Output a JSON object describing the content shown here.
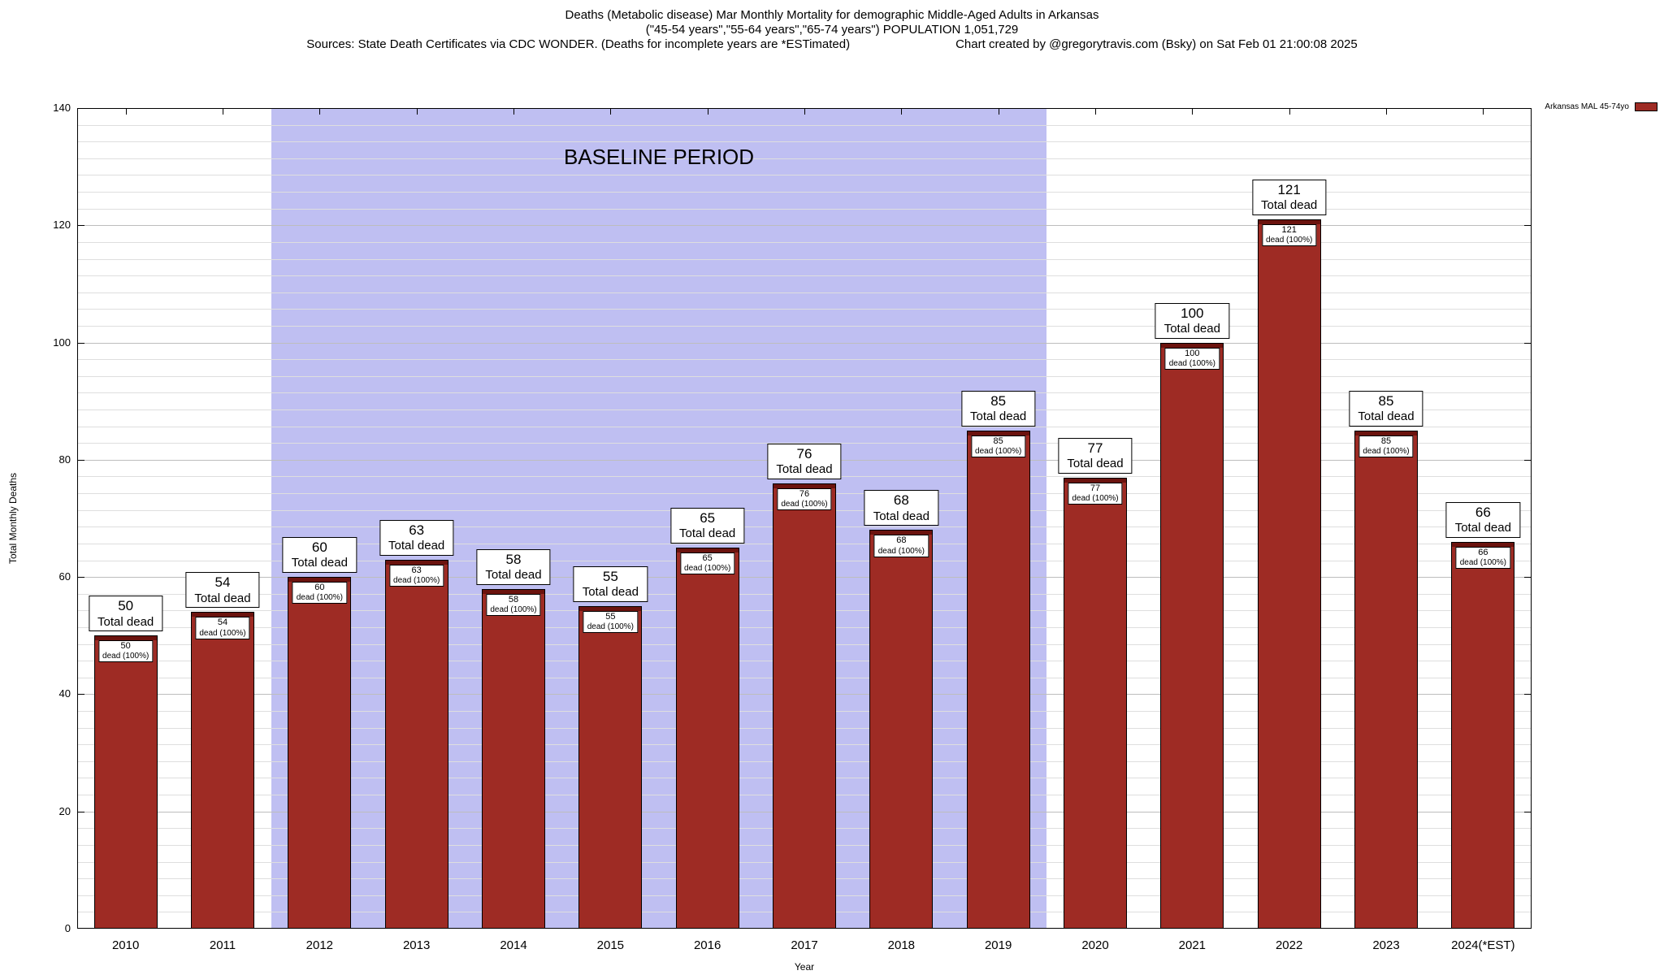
{
  "header": {
    "title_line1": "Deaths (Metabolic disease) Mar Monthly Mortality for demographic Middle-Aged Adults in Arkansas",
    "title_line2": "(\"45-54 years\",\"55-64 years\",\"65-74 years\") POPULATION 1,051,729",
    "sources": "Sources: State Death Certificates via CDC WONDER. (Deaths for incomplete years are *ESTimated)",
    "credit": "Chart created by @gregorytravis.com (Bsky) on Sat Feb 01 21:00:08 2025"
  },
  "legend": {
    "label": "Arkansas MAL 45-74yo",
    "swatch_color": "#9e2b24"
  },
  "axes": {
    "y_label": "Total Monthly Deaths",
    "x_label": "Year",
    "y_ticks": [
      0,
      20,
      40,
      60,
      80,
      100,
      120,
      140
    ]
  },
  "chart_data": {
    "type": "bar",
    "title": "Deaths (Metabolic disease) Mar Monthly Mortality for demographic Middle-Aged Adults in Arkansas",
    "xlabel": "Year",
    "ylabel": "Total Monthly Deaths",
    "ylim": [
      0,
      140
    ],
    "grid": true,
    "legend_position": "top-right",
    "categories": [
      "2010",
      "2011",
      "2012",
      "2013",
      "2014",
      "2015",
      "2016",
      "2017",
      "2018",
      "2019",
      "2020",
      "2021",
      "2022",
      "2023",
      "2024(*EST)"
    ],
    "series": [
      {
        "name": "Arkansas MAL 45-74yo",
        "values": [
          50,
          54,
          60,
          63,
          58,
          55,
          65,
          76,
          68,
          85,
          77,
          100,
          121,
          85,
          66
        ]
      }
    ],
    "bar_color": "#9e2b24",
    "bar_cap_color": "#6b130e",
    "total_label_suffix": "Total dead",
    "segment_label_suffix": "dead (100%)",
    "baseline": {
      "label": "BASELINE PERIOD",
      "start_category": "2012",
      "end_category": "2019",
      "color": "#bfbff2"
    }
  }
}
